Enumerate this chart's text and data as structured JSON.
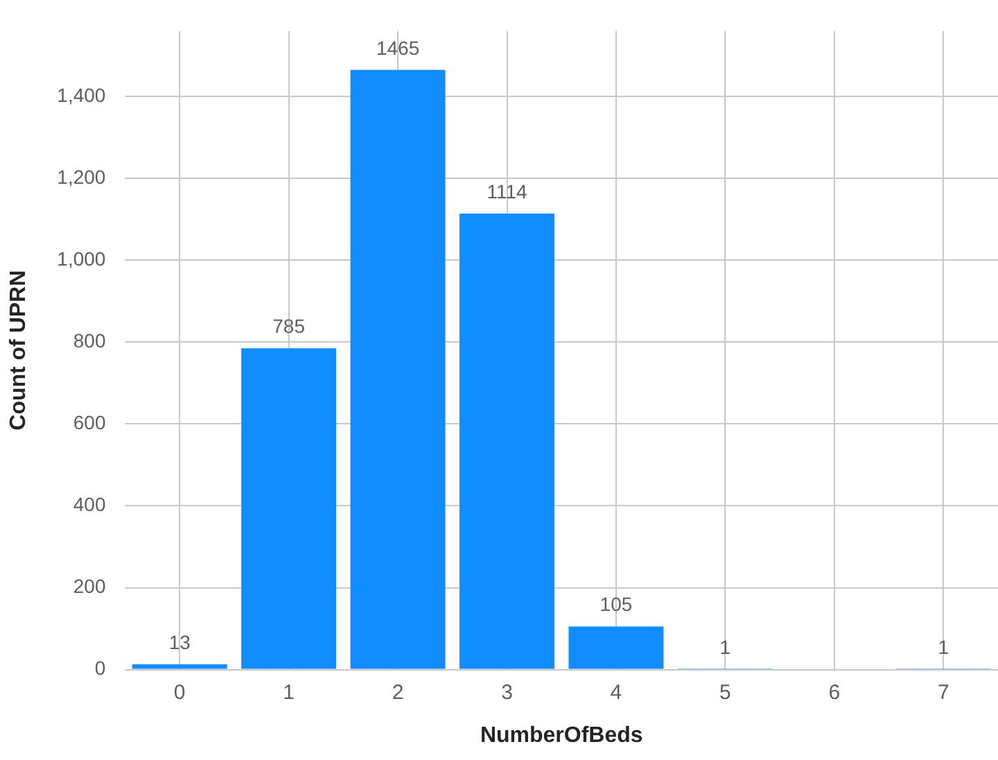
{
  "chart_data": {
    "type": "bar",
    "xlabel": "NumberOfBeds",
    "ylabel": "Count of UPRN",
    "categories": [
      "0",
      "1",
      "2",
      "3",
      "4",
      "5",
      "6",
      "7"
    ],
    "values": [
      13,
      785,
      1465,
      1114,
      105,
      1,
      null,
      1
    ],
    "color": "#118dff",
    "ylim": [
      0,
      1560
    ],
    "yticks": [
      0,
      200,
      400,
      600,
      800,
      {
        "value": 1000,
        "label": "1,000"
      },
      {
        "value": 1200,
        "label": "1,200"
      },
      {
        "value": 1400,
        "label": "1,400"
      }
    ],
    "grid": true,
    "data_labels": true,
    "legend": false
  }
}
